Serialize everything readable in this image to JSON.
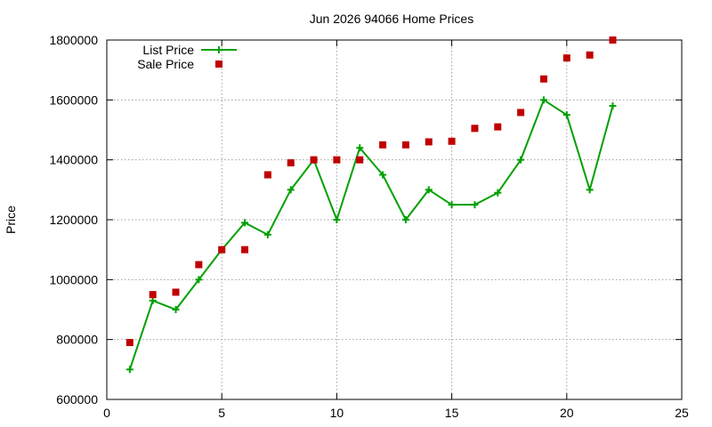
{
  "chart_data": {
    "type": "line",
    "title": "Jun 2026 94066 Home Prices",
    "xlabel": "",
    "ylabel": "Price",
    "xlim": [
      0,
      25
    ],
    "ylim": [
      600000,
      1800000
    ],
    "x_ticks": [
      0,
      5,
      10,
      15,
      20,
      25
    ],
    "y_ticks": [
      600000,
      800000,
      1000000,
      1200000,
      1400000,
      1600000,
      1800000
    ],
    "grid": true,
    "legend_position": "top-left",
    "series": [
      {
        "name": "List Price",
        "style": "line-with-plus-markers",
        "color": "#00a000",
        "x": [
          1,
          2,
          3,
          4,
          5,
          6,
          7,
          8,
          9,
          10,
          11,
          12,
          13,
          14,
          15,
          16,
          17,
          18,
          19,
          20,
          21,
          22
        ],
        "values": [
          700000,
          930000,
          900000,
          1000000,
          1100000,
          1190000,
          1150000,
          1300000,
          1400000,
          1200000,
          1440000,
          1350000,
          1200000,
          1300000,
          1250000,
          1250000,
          1290000,
          1400000,
          1600000,
          1550000,
          1300000,
          1580000
        ]
      },
      {
        "name": "Sale Price",
        "style": "square-markers",
        "color": "#c00000",
        "x": [
          1,
          2,
          3,
          4,
          5,
          6,
          7,
          8,
          9,
          10,
          11,
          12,
          13,
          14,
          15,
          16,
          17,
          18,
          19,
          20,
          21,
          22
        ],
        "values": [
          790000,
          950000,
          958000,
          1050000,
          1100000,
          1100000,
          1350000,
          1390000,
          1400000,
          1400000,
          1400000,
          1450000,
          1450000,
          1460000,
          1462000,
          1505000,
          1510000,
          1558000,
          1670000,
          1740000,
          1750000,
          1800000
        ]
      }
    ]
  }
}
